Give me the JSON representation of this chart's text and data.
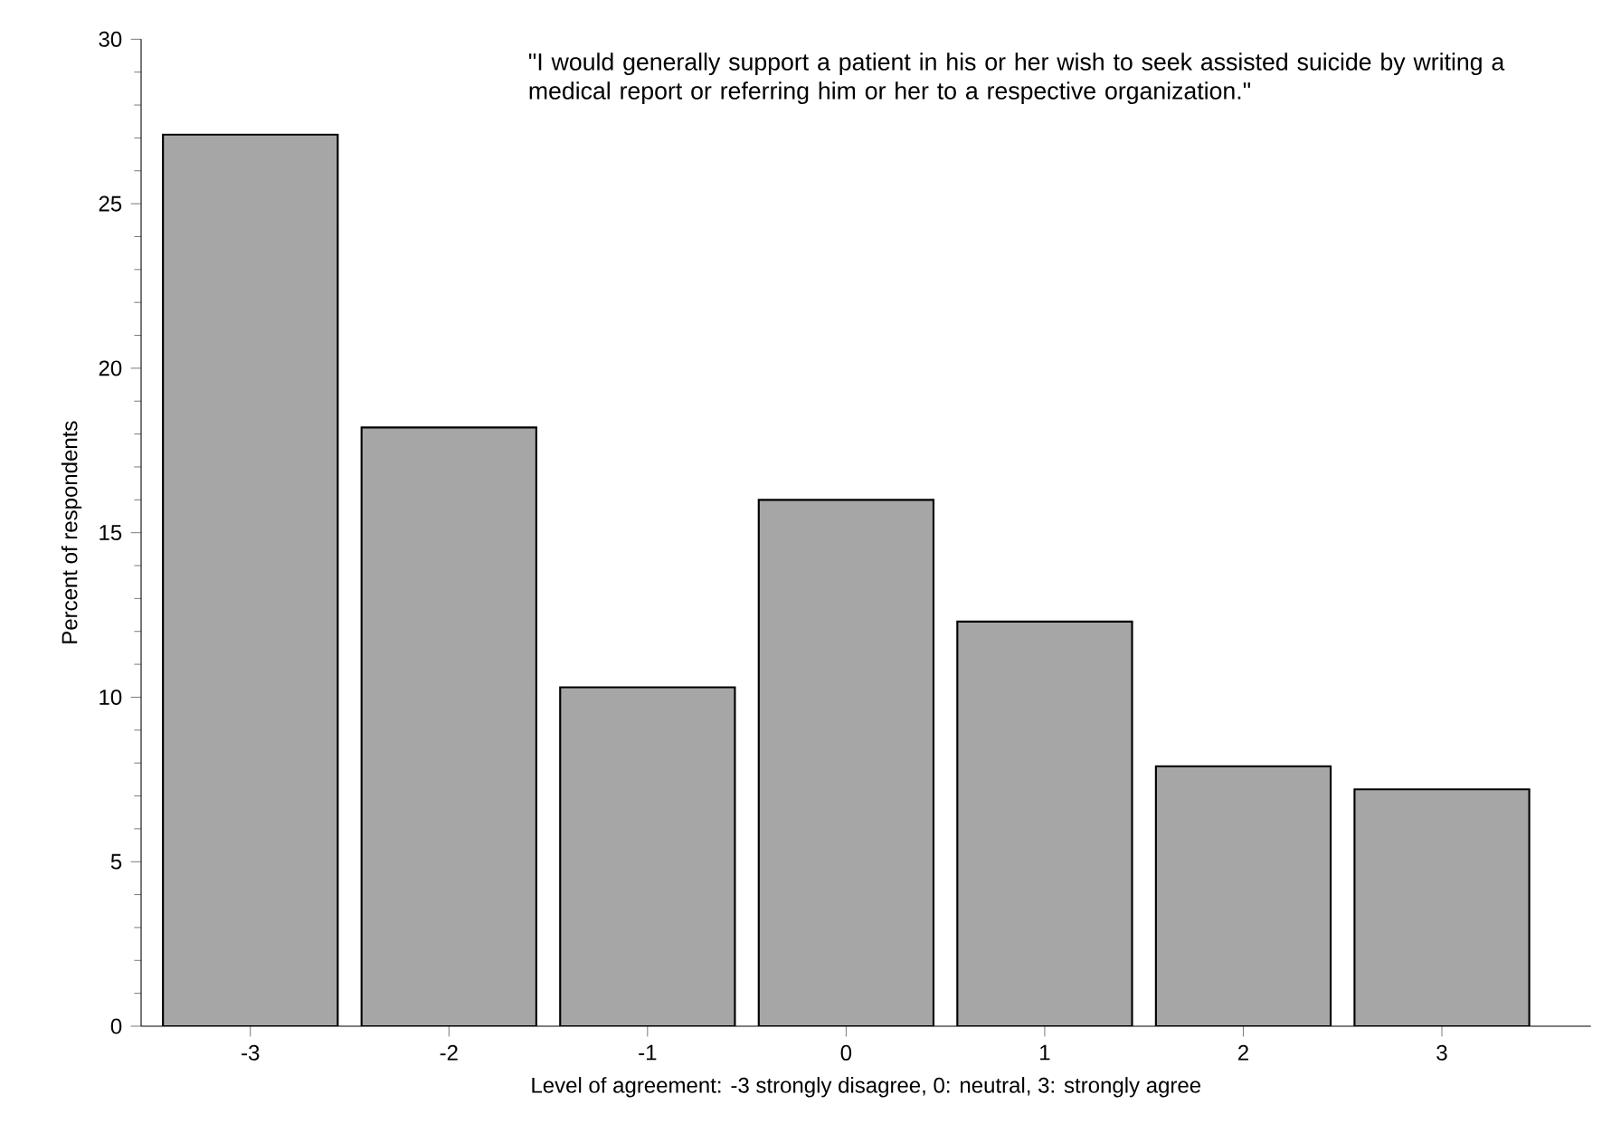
{
  "chart_data": {
    "type": "bar",
    "categories": [
      "-3",
      "-2",
      "-1",
      "0",
      "1",
      "2",
      "3"
    ],
    "values": [
      27.1,
      18.2,
      10.3,
      16.0,
      12.3,
      7.9,
      7.2
    ],
    "color": "#a6a6a6",
    "xlabel": "Level of agreement: -3 strongly disagree, 0: neutral, 3: strongly agree",
    "ylabel": "Percent of respondents",
    "ylim": [
      0,
      30
    ],
    "yticks": [
      0,
      5,
      10,
      15,
      20,
      25,
      30
    ],
    "annotations": [
      "\"I would generally support a patient in his or her wish to seek assisted suicide by writing a medical report or referring him or her to a respective organization.\""
    ],
    "grid": false
  }
}
